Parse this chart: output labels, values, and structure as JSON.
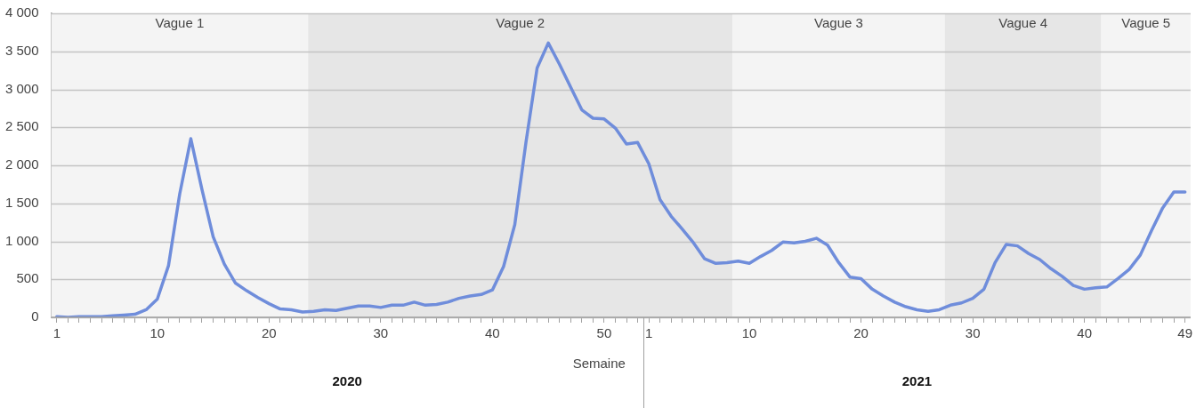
{
  "chart_data": {
    "type": "line",
    "xlabel": "Semaine",
    "categories": [
      "1",
      null,
      null,
      null,
      null,
      null,
      null,
      null,
      null,
      "10",
      null,
      null,
      null,
      null,
      null,
      null,
      null,
      null,
      null,
      "20",
      null,
      null,
      null,
      null,
      null,
      null,
      null,
      null,
      null,
      "30",
      null,
      null,
      null,
      null,
      null,
      null,
      null,
      null,
      null,
      "40",
      null,
      null,
      null,
      null,
      null,
      null,
      null,
      null,
      null,
      "50",
      null,
      null,
      null,
      "1",
      null,
      null,
      null,
      null,
      null,
      null,
      null,
      null,
      "10",
      null,
      null,
      null,
      null,
      null,
      null,
      null,
      null,
      null,
      "20",
      null,
      null,
      null,
      null,
      null,
      null,
      null,
      null,
      null,
      "30",
      null,
      null,
      null,
      null,
      null,
      null,
      null,
      null,
      null,
      "40",
      null,
      null,
      null,
      null,
      null,
      null,
      null,
      null,
      "49"
    ],
    "series": [
      {
        "color": "#6f8ddb",
        "values": [
          10,
          0,
          10,
          10,
          10,
          20,
          30,
          40,
          100,
          240,
          680,
          1620,
          2350,
          1680,
          1060,
          700,
          450,
          350,
          260,
          180,
          110,
          100,
          70,
          80,
          100,
          90,
          120,
          150,
          150,
          130,
          160,
          160,
          200,
          160,
          170,
          200,
          250,
          280,
          300,
          360,
          670,
          1220,
          2300,
          3280,
          3610,
          3330,
          3030,
          2730,
          2620,
          2610,
          2490,
          2280,
          2300,
          2020,
          1550,
          1330,
          1160,
          980,
          770,
          710,
          720,
          740,
          710,
          800,
          880,
          990,
          980,
          1000,
          1040,
          950,
          720,
          530,
          510,
          370,
          280,
          200,
          140,
          100,
          80,
          100,
          160,
          190,
          250,
          370,
          720,
          960,
          940,
          840,
          760,
          640,
          540,
          420,
          370,
          390,
          400,
          510,
          630,
          820,
          1140,
          1440,
          1650,
          1650
        ]
      }
    ],
    "ylim": [
      0,
      4000
    ],
    "yticks": [
      0,
      500,
      {
        "value": 1000,
        "label": "1 000"
      },
      {
        "value": 1500,
        "label": "1 500"
      },
      {
        "value": 2000,
        "label": "2 000"
      },
      {
        "value": 2500,
        "label": "2 500"
      },
      {
        "value": 3000,
        "label": "3 000"
      },
      {
        "value": 3500,
        "label": "3 500"
      },
      {
        "value": 4000,
        "label": "4 000"
      }
    ],
    "annotations": [
      "Vague 1",
      "Vague 2",
      "Vague 3",
      "Vague 4",
      "Vague 5",
      "2020",
      "2021"
    ],
    "grid": "y",
    "legend": false,
    "marker": "none",
    "line_style": "solid"
  }
}
